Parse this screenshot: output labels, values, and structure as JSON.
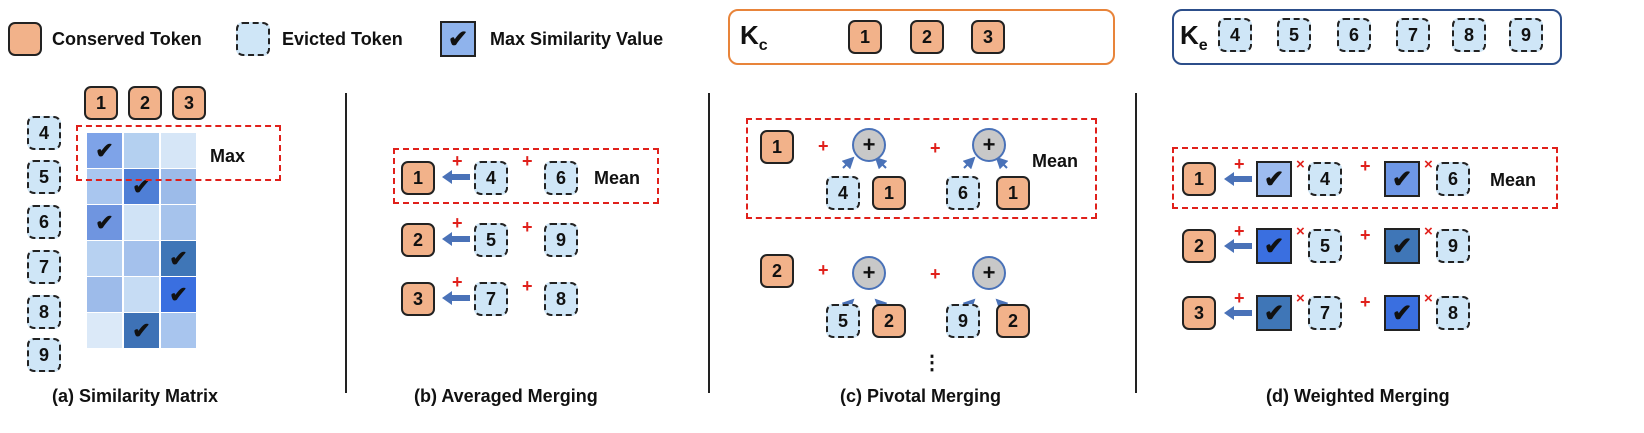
{
  "legend": {
    "conserved": "Conserved Token",
    "evicted": "Evicted Token",
    "max_sim": "Max Similarity Value"
  },
  "kc": {
    "label": "K",
    "sub": "c",
    "tokens": [
      "1",
      "2",
      "3"
    ]
  },
  "ke": {
    "label": "K",
    "sub": "e",
    "tokens": [
      "4",
      "5",
      "6",
      "7",
      "8",
      "9"
    ]
  },
  "panel_a": {
    "caption": "(a) Similarity Matrix",
    "max_label": "Max",
    "col_tokens": [
      "1",
      "2",
      "3"
    ],
    "row_tokens": [
      "4",
      "5",
      "6",
      "7",
      "8",
      "9"
    ]
  },
  "panel_b": {
    "caption": "(b) Averaged Merging",
    "mean_label": "Mean",
    "rows": [
      {
        "c": "1",
        "e1": "4",
        "e2": "6"
      },
      {
        "c": "2",
        "e1": "5",
        "e2": "9"
      },
      {
        "c": "3",
        "e1": "7",
        "e2": "8"
      }
    ]
  },
  "panel_c": {
    "caption": "(c) Pivotal Merging",
    "mean_label": "Mean",
    "ellipsis": "⋮",
    "rows": [
      {
        "c": "1",
        "e1": "4",
        "e2": "6"
      },
      {
        "c": "2",
        "e1": "5",
        "e2": "9"
      }
    ]
  },
  "panel_d": {
    "caption": "(d) Weighted Merging",
    "mean_label": "Mean",
    "rows": [
      {
        "c": "1",
        "e1": "4",
        "e2": "6"
      },
      {
        "c": "2",
        "e1": "5",
        "e2": "9"
      },
      {
        "c": "3",
        "e1": "7",
        "e2": "8"
      }
    ]
  },
  "symbols": {
    "plus": "+",
    "times": "×",
    "check": "✔",
    "circle_plus": "+"
  },
  "colors": {
    "conserved": "#f2b28a",
    "evicted": "#cfe6f7",
    "red": "#e0201b",
    "kc_border": "#e8843a",
    "ke_border": "#2c4e8a",
    "arrow": "#4a72b8"
  }
}
